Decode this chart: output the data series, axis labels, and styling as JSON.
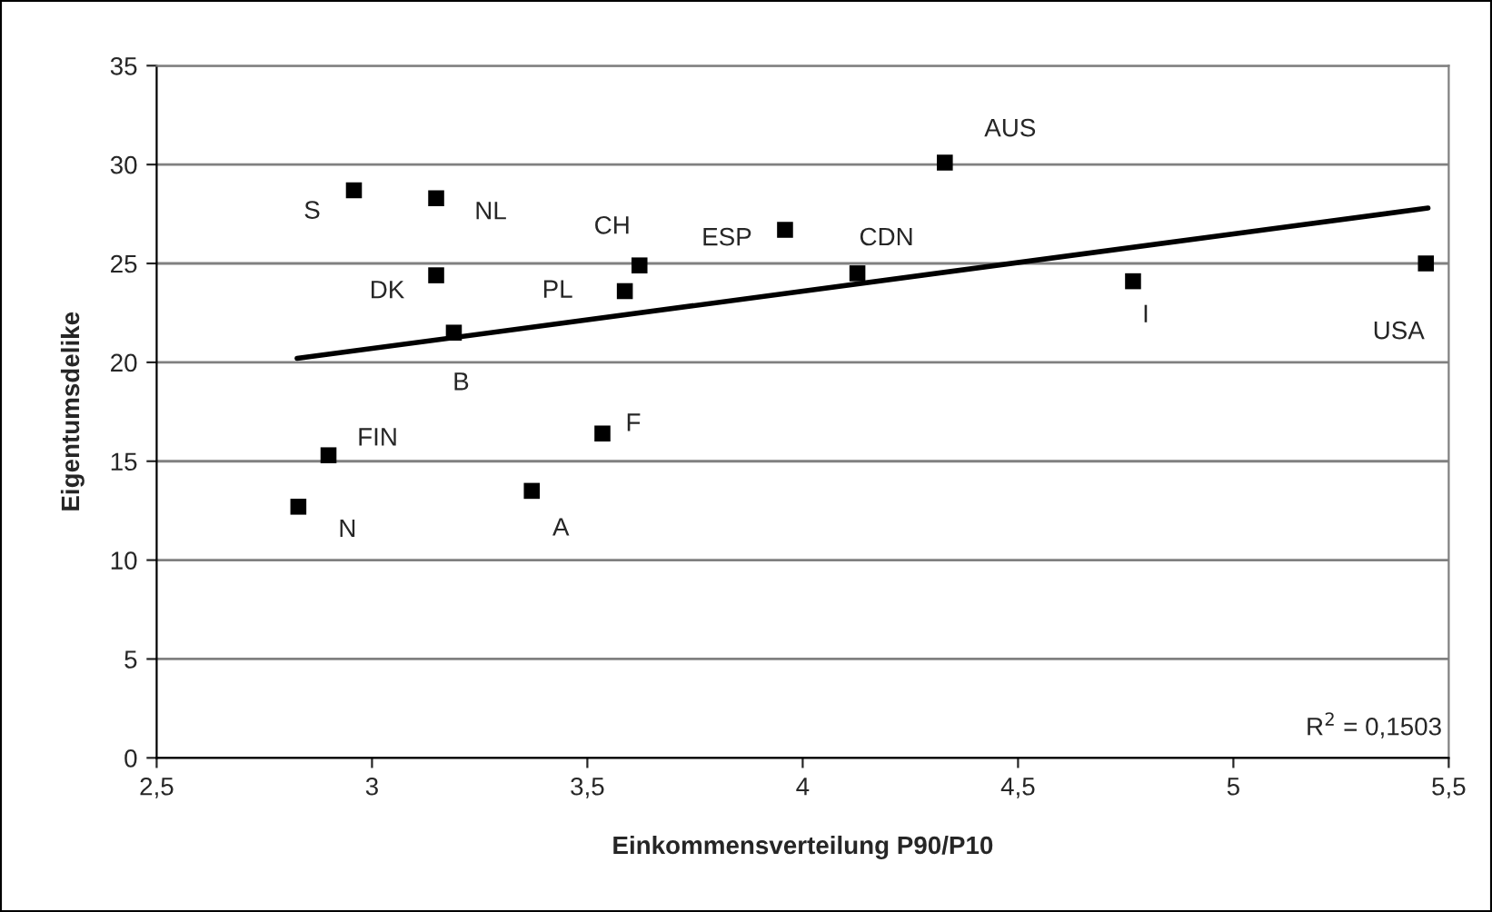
{
  "chart_data": {
    "type": "scatter",
    "xlabel": "Einkommensverteilung P90/P10",
    "ylabel": "Eigentumsdelike",
    "series": [
      {
        "color": "#000000",
        "marker": "square",
        "x": [
          2.958,
          3.149,
          3.149,
          3.19,
          3.587,
          3.621,
          3.535,
          2.899,
          2.829,
          3.371,
          3.959,
          4.33,
          4.127,
          4.767,
          5.447
        ],
        "values": [
          28.7,
          28.3,
          24.4,
          21.5,
          23.6,
          24.9,
          16.4,
          15.3,
          12.7,
          13.5,
          26.7,
          30.1,
          24.5,
          24.1,
          25.0
        ]
      },
      {
        "type": "line",
        "color": "#000000",
        "marker": "none",
        "line_style": "solid",
        "x": [
          2.826,
          5.452
        ],
        "values": [
          20.2,
          27.8
        ]
      }
    ],
    "annotations": [
      {
        "text": "S",
        "x": 2.958,
        "y": 28.7
      },
      {
        "text": "NL",
        "x": 3.149,
        "y": 28.3
      },
      {
        "text": "DK",
        "x": 3.149,
        "y": 24.4
      },
      {
        "text": "B",
        "x": 3.19,
        "y": 21.5
      },
      {
        "text": "PL",
        "x": 3.587,
        "y": 23.6
      },
      {
        "text": "CH",
        "x": 3.621,
        "y": 24.9
      },
      {
        "text": "F",
        "x": 3.535,
        "y": 16.4
      },
      {
        "text": "FIN",
        "x": 2.899,
        "y": 15.3
      },
      {
        "text": "N",
        "x": 2.829,
        "y": 12.7
      },
      {
        "text": "A",
        "x": 3.371,
        "y": 13.5
      },
      {
        "text": "ESP",
        "x": 3.959,
        "y": 26.7
      },
      {
        "text": "AUS",
        "x": 4.33,
        "y": 30.1
      },
      {
        "text": "CDN",
        "x": 4.127,
        "y": 24.5
      },
      {
        "text": "I",
        "x": 4.767,
        "y": 24.1
      },
      {
        "text": "USA",
        "x": 5.447,
        "y": 25.0
      },
      "R$^{2}$ = 0,1503"
    ],
    "xlim": [
      2.5,
      5.5
    ],
    "xticks": [
      {
        "value": 2.5,
        "label": "2,5"
      },
      3,
      {
        "value": 3.5,
        "label": "3,5"
      },
      4,
      {
        "value": 4.5,
        "label": "4,5"
      },
      5,
      {
        "value": 5.5,
        "label": "5,5"
      }
    ],
    "ylim": [
      0,
      35
    ],
    "yticks": [
      0,
      5,
      10,
      15,
      20,
      25,
      30,
      35
    ],
    "grid": "y",
    "legend": false
  }
}
